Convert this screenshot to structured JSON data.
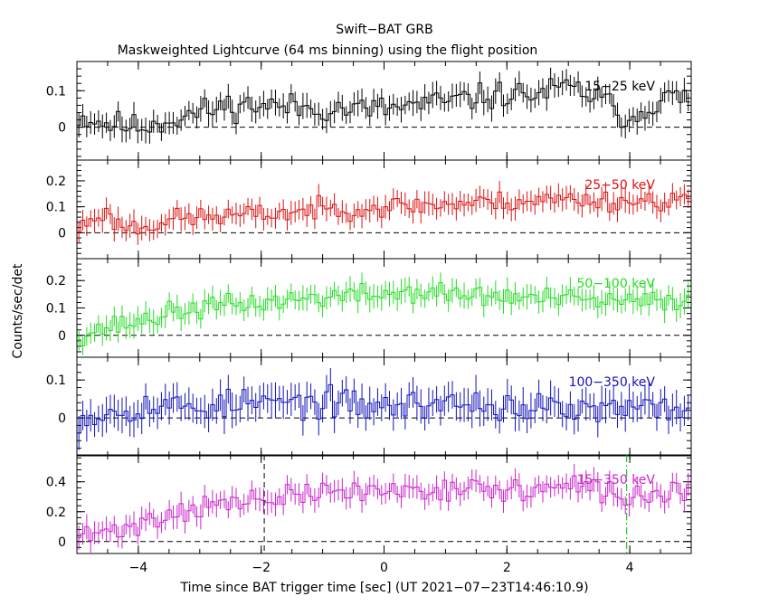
{
  "title": "Swift−BAT GRB",
  "subtitle": "Maskweighted Lightcurve (64 ms binning) using the flight position",
  "xlabel": "Time since BAT trigger time [sec] (UT 2021−07−23T14:46:10.9)",
  "ylabel": "Counts/sec/det",
  "chart_data": {
    "type": "line",
    "xlim": [
      -5,
      5
    ],
    "x_ticks": [
      -4,
      -2,
      0,
      2,
      4
    ],
    "x_tick_labels": [
      "−4",
      "−2",
      "0",
      "2",
      "4"
    ],
    "bin_width": 0.064,
    "markers": [
      {
        "x": -1.95,
        "panel": 4,
        "style": "dashed",
        "color": "#000000"
      },
      {
        "x": 3.95,
        "panel": 4,
        "style": "dashdot",
        "color": "#00bb00"
      }
    ],
    "panels": [
      {
        "label": "15−25 keV",
        "color": "#000000",
        "ylim": [
          -0.09,
          0.18
        ],
        "yticks": [
          0,
          0.1
        ],
        "ytick_labels": [
          "0",
          "0.1"
        ],
        "keys": [
          [
            -5,
            0.03
          ],
          [
            -4.5,
            0.01
          ],
          [
            -4,
            0.0
          ],
          [
            -3.5,
            0.02
          ],
          [
            -3,
            0.04
          ],
          [
            -2.5,
            0.06
          ],
          [
            -2,
            0.06
          ],
          [
            -1,
            0.05
          ],
          [
            0,
            0.05
          ],
          [
            1,
            0.07
          ],
          [
            1.5,
            0.08
          ],
          [
            2,
            0.09
          ],
          [
            2.5,
            0.09
          ],
          [
            3,
            0.11
          ],
          [
            3.5,
            0.08
          ],
          [
            4,
            0.02
          ],
          [
            4.5,
            0.08
          ],
          [
            5,
            0.08
          ]
        ],
        "amp": 0.028,
        "err": 0.03,
        "seed": 11
      },
      {
        "label": "25−50 keV",
        "color": "#dd1111",
        "ylim": [
          -0.1,
          0.28
        ],
        "yticks": [
          0,
          0.1,
          0.2
        ],
        "ytick_labels": [
          "0",
          "0.1",
          "0.2"
        ],
        "keys": [
          [
            -5,
            0.01
          ],
          [
            -4.6,
            0.08
          ],
          [
            -4.3,
            0.03
          ],
          [
            -4,
            0.02
          ],
          [
            -3.5,
            0.05
          ],
          [
            -3,
            0.06
          ],
          [
            -2,
            0.07
          ],
          [
            -1,
            0.09
          ],
          [
            0,
            0.1
          ],
          [
            1,
            0.11
          ],
          [
            2,
            0.12
          ],
          [
            3,
            0.13
          ],
          [
            4,
            0.12
          ],
          [
            5,
            0.13
          ]
        ],
        "amp": 0.03,
        "err": 0.04,
        "seed": 23
      },
      {
        "label": "50−100 keV",
        "color": "#22dd22",
        "ylim": [
          -0.08,
          0.28
        ],
        "yticks": [
          0,
          0.1,
          0.2
        ],
        "ytick_labels": [
          "0",
          "0.1",
          "0.2"
        ],
        "keys": [
          [
            -5,
            0.0
          ],
          [
            -4.5,
            0.03
          ],
          [
            -4,
            0.05
          ],
          [
            -3.5,
            0.08
          ],
          [
            -3,
            0.1
          ],
          [
            -2,
            0.12
          ],
          [
            -1,
            0.14
          ],
          [
            0,
            0.15
          ],
          [
            0.5,
            0.16
          ],
          [
            1,
            0.15
          ],
          [
            2,
            0.14
          ],
          [
            3,
            0.13
          ],
          [
            4,
            0.12
          ],
          [
            5,
            0.13
          ]
        ],
        "amp": 0.03,
        "err": 0.04,
        "seed": 37
      },
      {
        "label": "100−350 keV",
        "color": "#1111bb",
        "ylim": [
          -0.1,
          0.16
        ],
        "yticks": [
          0,
          0.1
        ],
        "ytick_labels": [
          "0",
          "0.1"
        ],
        "keys": [
          [
            -5,
            0.0
          ],
          [
            -4,
            0.03
          ],
          [
            -3,
            0.03
          ],
          [
            -2,
            0.04
          ],
          [
            -1,
            0.04
          ],
          [
            0,
            0.03
          ],
          [
            1,
            0.04
          ],
          [
            2,
            0.03
          ],
          [
            3,
            0.02
          ],
          [
            4,
            0.02
          ],
          [
            5,
            0.03
          ]
        ],
        "amp": 0.03,
        "err": 0.04,
        "seed": 53
      },
      {
        "label": "15−350 keV",
        "color": "#cc22cc",
        "ylim": [
          -0.08,
          0.58
        ],
        "yticks": [
          0,
          0.2,
          0.4
        ],
        "ytick_labels": [
          "0",
          "0.2",
          "0.4"
        ],
        "keys": [
          [
            -5,
            0.03
          ],
          [
            -4.5,
            0.06
          ],
          [
            -4,
            0.12
          ],
          [
            -3.5,
            0.18
          ],
          [
            -3,
            0.24
          ],
          [
            -2,
            0.27
          ],
          [
            -1,
            0.33
          ],
          [
            0,
            0.34
          ],
          [
            1,
            0.36
          ],
          [
            2,
            0.34
          ],
          [
            3,
            0.36
          ],
          [
            3.5,
            0.35
          ],
          [
            4,
            0.28
          ],
          [
            4.5,
            0.33
          ],
          [
            5,
            0.35
          ]
        ],
        "amp": 0.06,
        "err": 0.07,
        "seed": 71
      }
    ]
  }
}
